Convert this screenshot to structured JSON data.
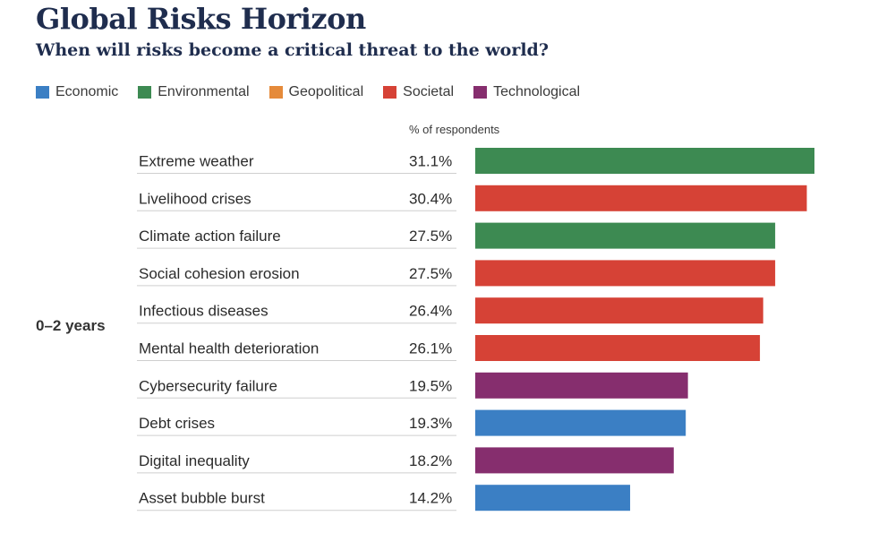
{
  "header": {
    "title": "Global Risks Horizon",
    "subtitle": "When will risks become a critical threat to the world?"
  },
  "legend": [
    {
      "label": "Economic",
      "color": "#3b7fc4"
    },
    {
      "label": "Environmental",
      "color": "#3d8a52"
    },
    {
      "label": "Geopolitical",
      "color": "#e58a3a"
    },
    {
      "label": "Societal",
      "color": "#d64236"
    },
    {
      "label": "Technological",
      "color": "#862e6e"
    }
  ],
  "chart_data": {
    "type": "bar",
    "orientation": "horizontal",
    "unit_label": "% of respondents",
    "group_label": "0–2 years",
    "categories": [
      "Extreme weather",
      "Livelihood crises",
      "Climate action failure",
      "Social cohesion erosion",
      "Infectious diseases",
      "Mental health deterioration",
      "Cybersecurity failure",
      "Debt crises",
      "Digital inequality",
      "Asset bubble burst"
    ],
    "values": [
      31.1,
      30.4,
      27.5,
      27.5,
      26.4,
      26.1,
      19.5,
      19.3,
      18.2,
      14.2
    ],
    "value_labels": [
      "31.1%",
      "30.4%",
      "27.5%",
      "27.5%",
      "26.4%",
      "26.1%",
      "19.5%",
      "19.3%",
      "18.2%",
      "14.2%"
    ],
    "risk_category": [
      "Environmental",
      "Societal",
      "Environmental",
      "Societal",
      "Societal",
      "Societal",
      "Technological",
      "Economic",
      "Technological",
      "Economic"
    ],
    "xlim": [
      0,
      31.1
    ]
  }
}
